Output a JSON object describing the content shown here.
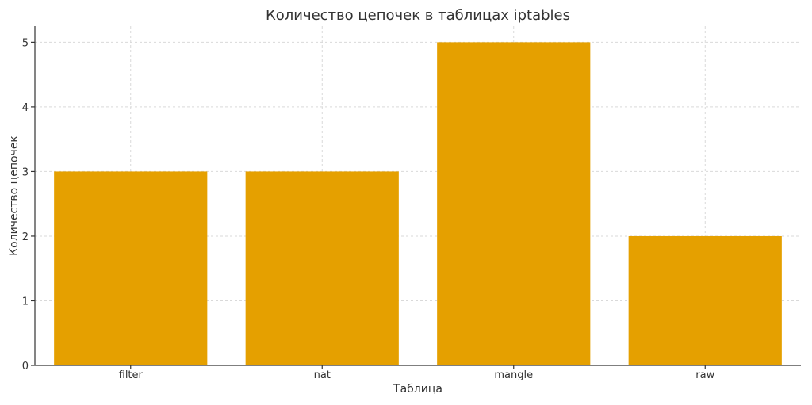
{
  "chart_data": {
    "type": "bar",
    "title": "Количество цепочек в таблицах iptables",
    "xlabel": "Таблица",
    "ylabel": "Количество цепочек",
    "categories": [
      "filter",
      "nat",
      "mangle",
      "raw"
    ],
    "values": [
      3,
      3,
      5,
      2
    ],
    "ylim": [
      0,
      5.25
    ],
    "yticks": [
      0,
      1,
      2,
      3,
      4,
      5
    ],
    "grid": true,
    "bar_color": "#E5A000"
  }
}
